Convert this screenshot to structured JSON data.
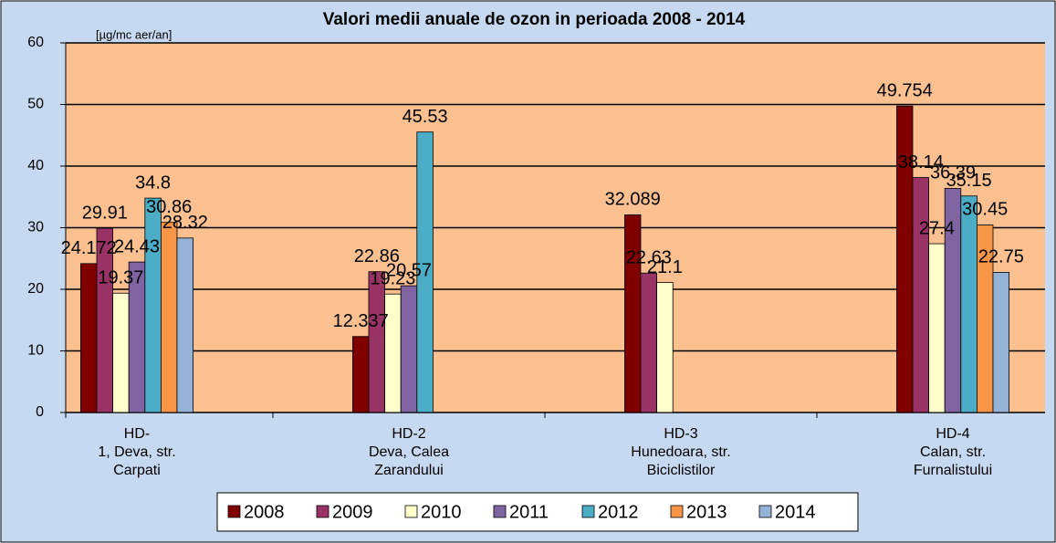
{
  "chart_data": {
    "type": "bar",
    "title": "Valori medii anuale de ozon in perioada 2008 - 2014",
    "y_label": "[µg/mc aer/an]",
    "categories": [
      "HD-\n1, Deva, str.\nCarpati",
      "HD-2\nDeva, Calea\nZarandului",
      "HD-3\nHunedoara, str.\nBiciclistilor",
      "HD-4\nCalan, str.\nFurnalistului"
    ],
    "series": [
      {
        "name": "2008",
        "color": "#800000",
        "values": [
          24.172,
          12.337,
          32.089,
          49.754
        ]
      },
      {
        "name": "2009",
        "color": "#993366",
        "values": [
          29.91,
          22.86,
          22.63,
          38.14
        ]
      },
      {
        "name": "2010",
        "color": "#ffffcc",
        "values": [
          19.37,
          19.23,
          21.1,
          27.4
        ]
      },
      {
        "name": "2011",
        "color": "#8064a2",
        "values": [
          24.43,
          20.57,
          null,
          36.39
        ]
      },
      {
        "name": "2012",
        "color": "#4bacc6",
        "values": [
          34.8,
          45.53,
          null,
          35.15
        ]
      },
      {
        "name": "2013",
        "color": "#f79646",
        "values": [
          30.86,
          null,
          null,
          30.45
        ]
      },
      {
        "name": "2014",
        "color": "#95b3d7",
        "values": [
          28.32,
          null,
          null,
          22.75
        ]
      }
    ],
    "ylim": [
      0,
      60
    ],
    "yticks": [
      0,
      10,
      20,
      30,
      40,
      50,
      60
    ],
    "grid": true,
    "legend": "bottom"
  }
}
